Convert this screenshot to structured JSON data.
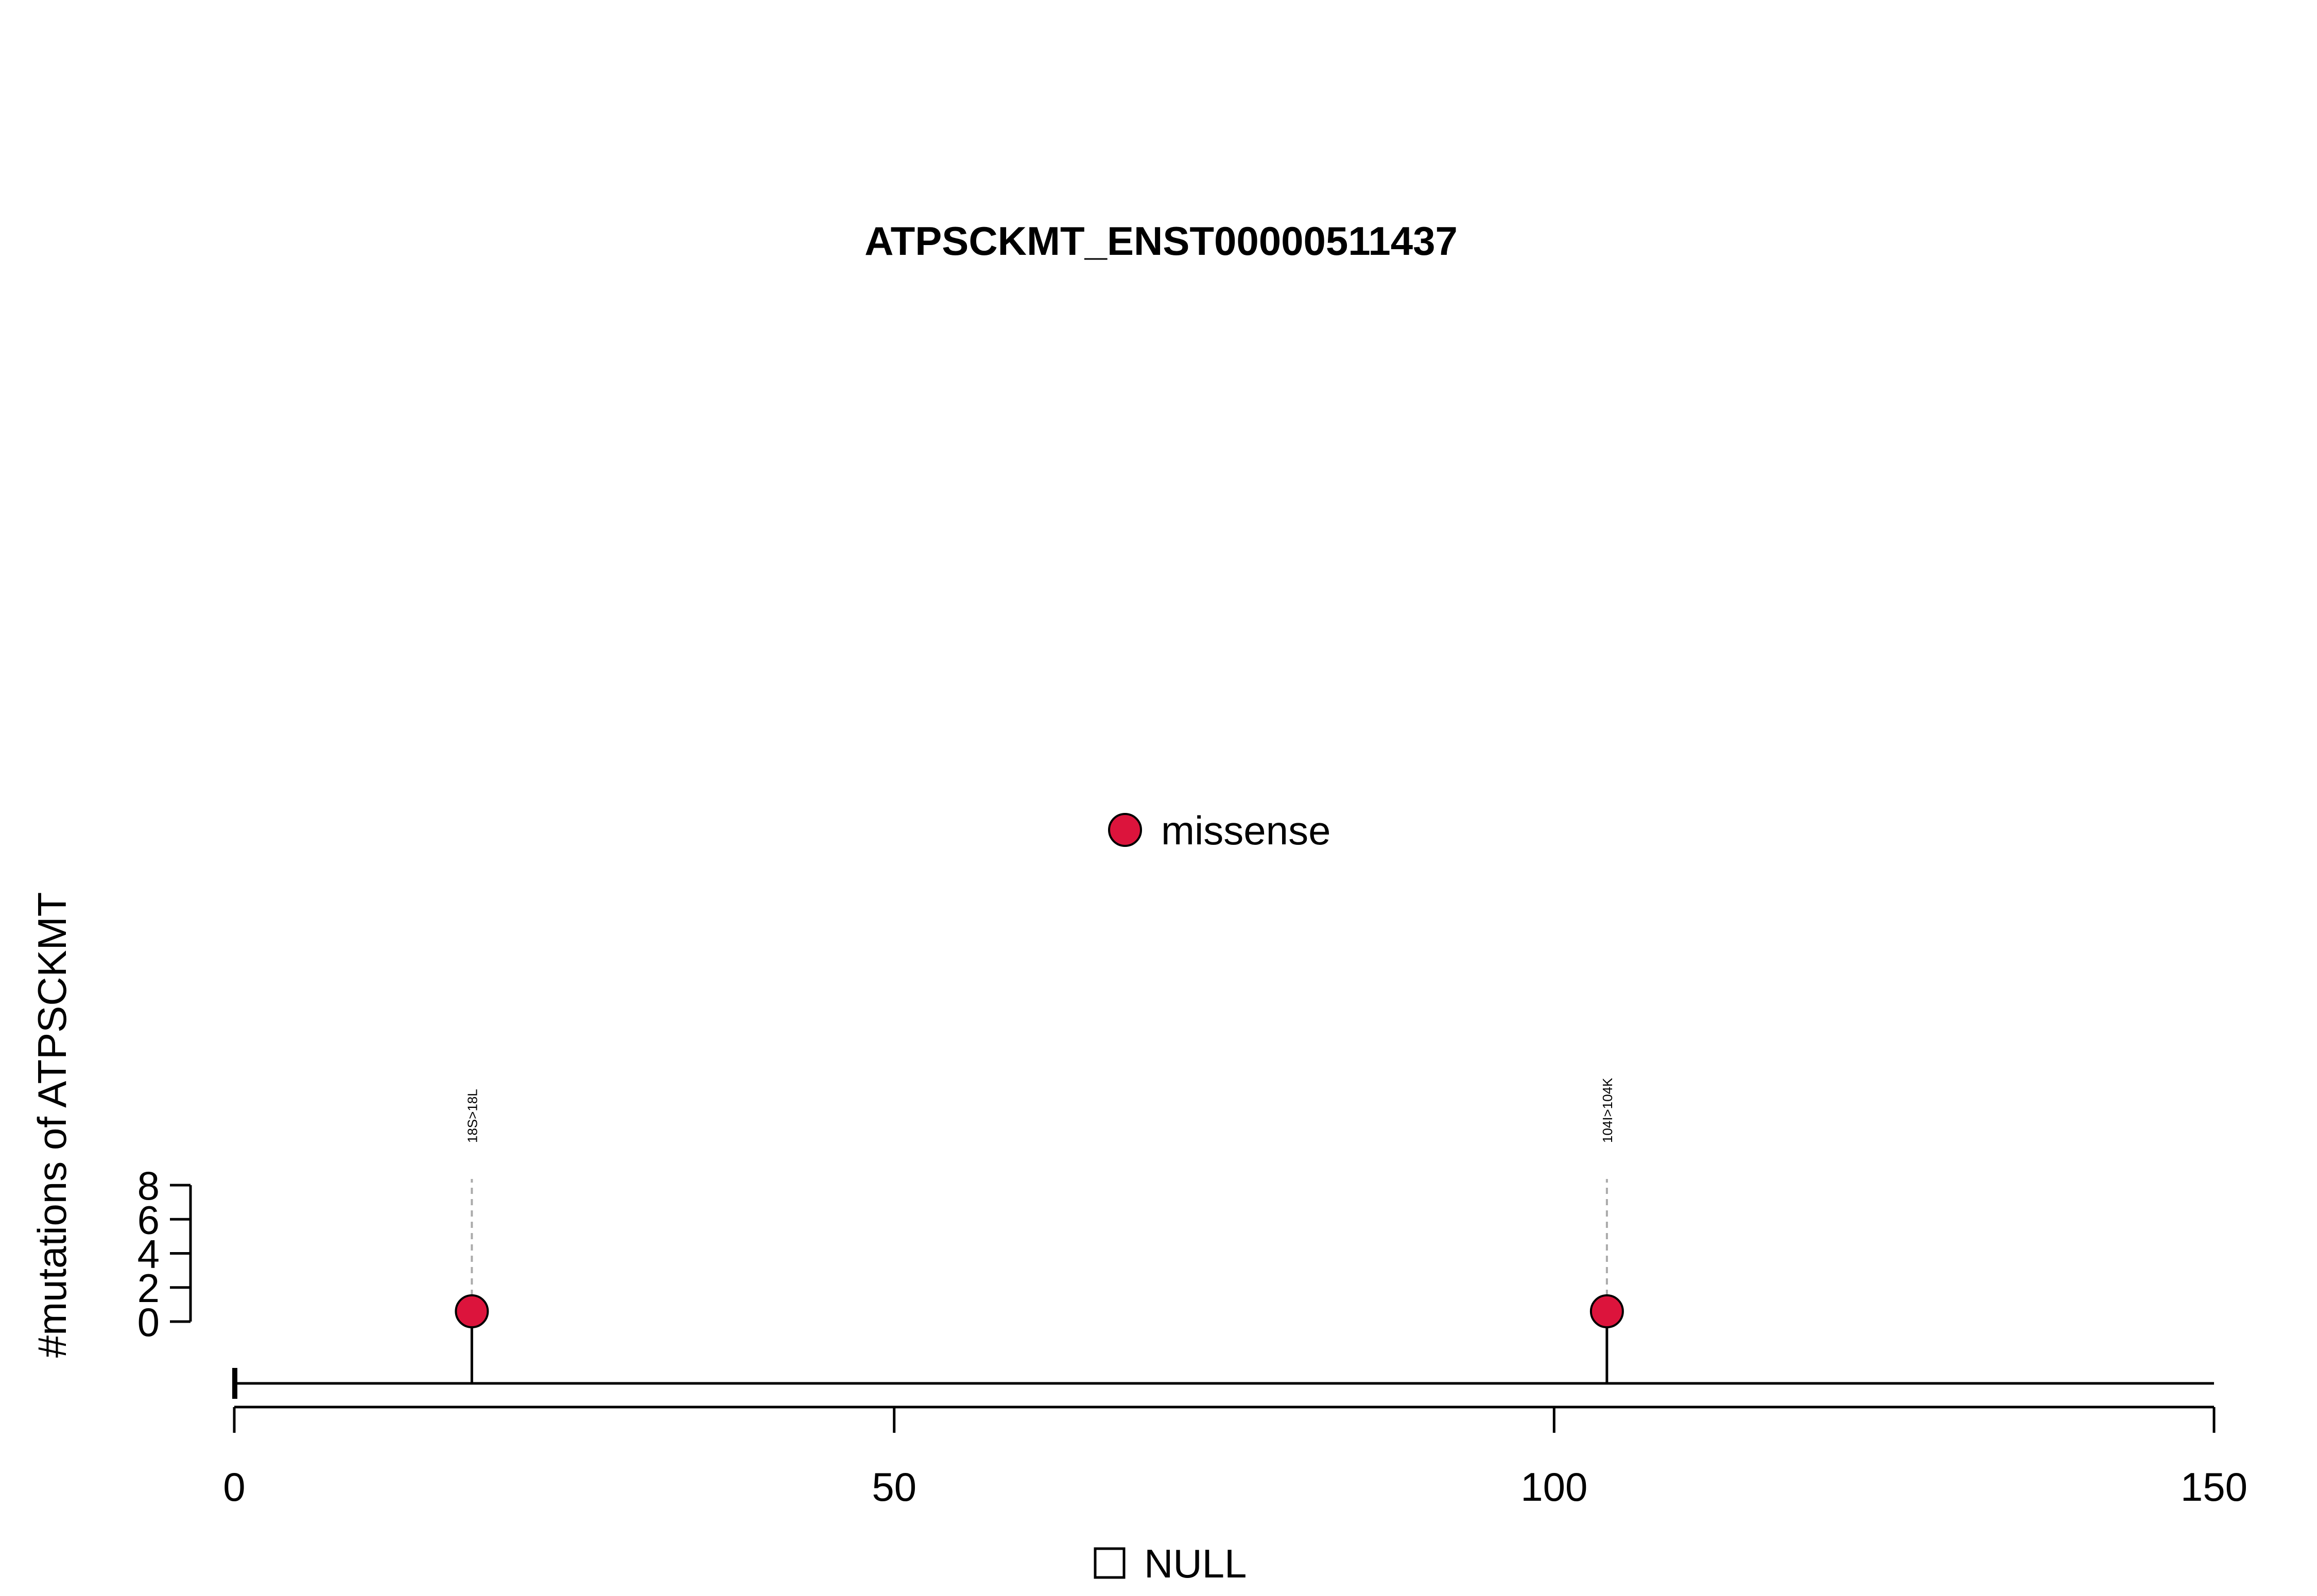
{
  "chart_data": {
    "type": "lollipop",
    "title": "ATPSCKMT_ENST00000511437",
    "xlabel": "",
    "ylabel": "#mutations of ATPSCKMT",
    "xlim": [
      0,
      150
    ],
    "x_ticks": [
      "0",
      "50",
      "100",
      "150"
    ],
    "ylim": [
      0,
      8
    ],
    "y_ticks": [
      "0",
      "2",
      "4",
      "6",
      "8"
    ],
    "protein_length": 150,
    "mutations": [
      {
        "position": 18,
        "count": 1,
        "label": "18S>18L",
        "type": "missense"
      },
      {
        "position": 104,
        "count": 1,
        "label": "104I>104K",
        "type": "missense"
      }
    ],
    "legend": [
      {
        "label": "missense",
        "color": "#DC143C",
        "shape": "circle"
      }
    ],
    "domain_legend": [
      {
        "label": "NULL",
        "shape": "square"
      }
    ]
  }
}
